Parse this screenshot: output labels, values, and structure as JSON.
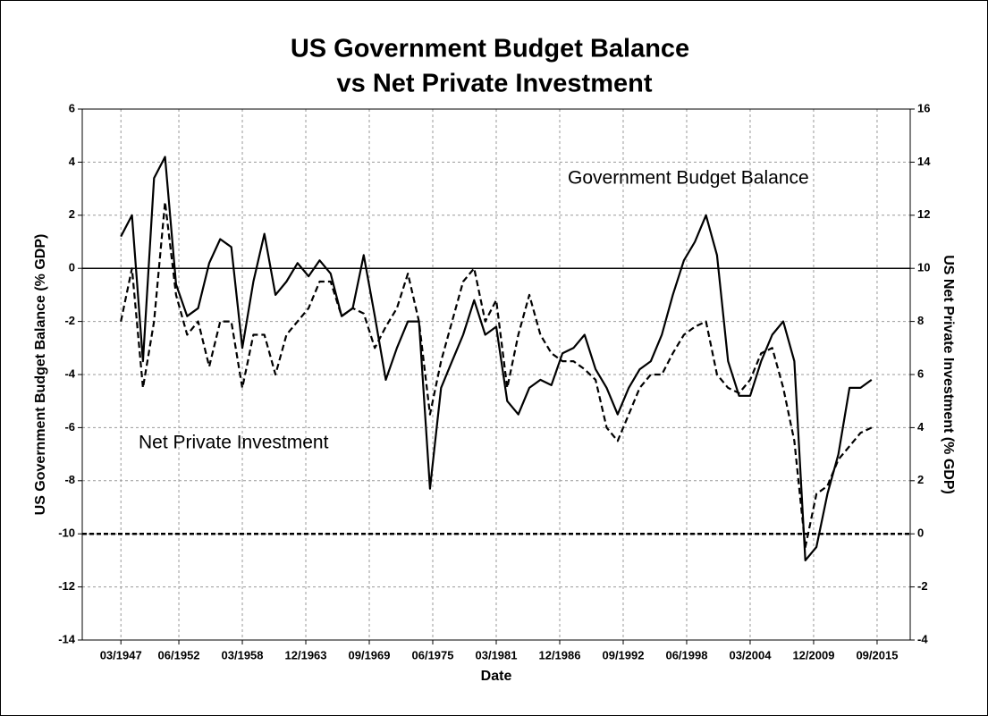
{
  "chart_data": {
    "type": "line",
    "title": [
      "US Government Budget Balance",
      "vs Net Private Investment"
    ],
    "xlabel": "Date",
    "ylabel": "US Government Budget Balance (% GDP)",
    "y2label": "US Net Private Investment (% GDP)",
    "x": [
      "03/1947",
      "03/1948",
      "03/1949",
      "03/1950",
      "03/1951",
      "03/1952",
      "03/1953",
      "03/1954",
      "03/1955",
      "03/1956",
      "03/1957",
      "03/1958",
      "03/1959",
      "03/1960",
      "03/1961",
      "03/1962",
      "03/1963",
      "03/1964",
      "03/1965",
      "03/1966",
      "03/1967",
      "03/1968",
      "03/1969",
      "03/1970",
      "03/1971",
      "03/1972",
      "03/1973",
      "03/1974",
      "03/1975",
      "03/1976",
      "03/1977",
      "03/1978",
      "03/1979",
      "03/1980",
      "03/1981",
      "03/1982",
      "03/1983",
      "03/1984",
      "03/1985",
      "03/1986",
      "03/1987",
      "03/1988",
      "03/1989",
      "03/1990",
      "03/1991",
      "03/1992",
      "03/1993",
      "03/1994",
      "03/1995",
      "03/1996",
      "03/1997",
      "03/1998",
      "03/1999",
      "03/2000",
      "03/2001",
      "03/2002",
      "03/2003",
      "03/2004",
      "03/2005",
      "03/2006",
      "03/2007",
      "03/2008",
      "03/2009",
      "03/2010",
      "03/2011",
      "03/2012",
      "03/2013",
      "03/2014",
      "03/2015"
    ],
    "series": [
      {
        "name": "Government Budget Balance",
        "color": "#000000",
        "style": "solid",
        "axis": "y",
        "values": [
          1.2,
          2.0,
          -3.5,
          3.4,
          4.2,
          -0.6,
          -1.8,
          -1.5,
          0.2,
          1.1,
          0.8,
          -3.0,
          -0.5,
          1.3,
          -1.0,
          -0.5,
          0.2,
          -0.3,
          0.3,
          -0.2,
          -1.8,
          -1.5,
          0.5,
          -1.8,
          -4.2,
          -3.0,
          -2.0,
          -2.0,
          -8.3,
          -4.5,
          -3.5,
          -2.5,
          -1.2,
          -2.5,
          -2.2,
          -5.0,
          -5.5,
          -4.5,
          -4.2,
          -4.4,
          -3.2,
          -3.0,
          -2.5,
          -3.8,
          -4.5,
          -5.5,
          -4.5,
          -3.8,
          -3.5,
          -2.5,
          -1.0,
          0.3,
          1.0,
          2.0,
          0.5,
          -3.5,
          -4.8,
          -4.8,
          -3.5,
          -2.5,
          -2.0,
          -3.5,
          -11.0,
          -10.5,
          -8.5,
          -7.0,
          -4.5,
          -4.5,
          -4.2
        ]
      },
      {
        "name": "Net Private Investment",
        "color": "#000000",
        "style": "dashed",
        "axis": "y2",
        "values": [
          8.0,
          10.0,
          5.5,
          8.0,
          12.5,
          9.0,
          7.5,
          8.0,
          6.3,
          8.0,
          8.0,
          5.5,
          7.5,
          7.5,
          6.0,
          7.5,
          8.0,
          8.5,
          9.5,
          9.5,
          8.2,
          8.5,
          8.3,
          7.0,
          7.8,
          8.5,
          9.8,
          8.0,
          4.5,
          6.5,
          8.0,
          9.5,
          10.0,
          8.0,
          8.8,
          5.5,
          7.5,
          9.0,
          7.5,
          6.8,
          6.5,
          6.5,
          6.2,
          5.8,
          4.0,
          3.5,
          4.5,
          5.5,
          6.0,
          6.0,
          6.8,
          7.5,
          7.8,
          8.0,
          6.0,
          5.5,
          5.3,
          5.8,
          6.8,
          7.0,
          5.5,
          3.5,
          -0.5,
          1.5,
          1.8,
          2.8,
          3.3,
          3.8,
          4.0
        ]
      }
    ],
    "xlim": [
      "09/1943",
      "09/2018"
    ],
    "xticks": [
      "03/1947",
      "06/1952",
      "03/1958",
      "12/1963",
      "09/1969",
      "06/1975",
      "03/1981",
      "12/1986",
      "09/1992",
      "06/1998",
      "03/2004",
      "12/2009",
      "09/2015"
    ],
    "ylim": [
      -14,
      6
    ],
    "yticks": [
      -14,
      -12,
      -10,
      -8,
      -6,
      -4,
      -2,
      0,
      2,
      4,
      6
    ],
    "y2lim": [
      -4,
      16
    ],
    "y2ticks": [
      -4,
      -2,
      0,
      2,
      4,
      6,
      8,
      10,
      12,
      14,
      16
    ],
    "reference_lines": [
      {
        "axis": "y",
        "value": 0,
        "style": "solid"
      },
      {
        "axis": "y2",
        "value": 0,
        "style": "dashed"
      }
    ],
    "grid": true
  }
}
